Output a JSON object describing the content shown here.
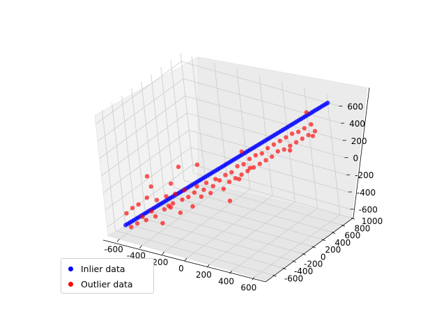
{
  "chart_data": {
    "type": "scatter",
    "projection": "3d",
    "title": "",
    "xlabel": "",
    "ylabel": "",
    "zlabel": "",
    "xlim": [
      -700,
      700
    ],
    "ylim": [
      -750,
      1000
    ],
    "zlim": [
      -700,
      700
    ],
    "x_ticks": [
      "-600",
      "-400",
      "-200",
      "0",
      "200",
      "400",
      "600"
    ],
    "y_ticks": [
      "-600",
      "-400",
      "-200",
      "0",
      "200",
      "400",
      "600",
      "800",
      "1000"
    ],
    "z_ticks": [
      "-600",
      "-400",
      "-200",
      "0",
      "200",
      "400",
      "600"
    ],
    "grid": true,
    "legend_position": "lower-left",
    "series": [
      {
        "name": "Inlier data",
        "color": "#0000ff",
        "line": {
          "x0": -600,
          "y0": -600,
          "z0": -600,
          "x1": 600,
          "y1": 1000,
          "z1": 600
        },
        "count": 100
      },
      {
        "name": "Outlier data",
        "color": "#ff0000",
        "points": [
          [
            -600,
            -560,
            -480
          ],
          [
            -580,
            -540,
            -640
          ],
          [
            -560,
            -520,
            -420
          ],
          [
            -540,
            -500,
            -600
          ],
          [
            -520,
            -480,
            -380
          ],
          [
            -500,
            -470,
            -520
          ],
          [
            -480,
            -450,
            -560
          ],
          [
            -460,
            -430,
            -300
          ],
          [
            -440,
            -410,
            -460
          ],
          [
            -420,
            -390,
            -520
          ],
          [
            -400,
            -370,
            -330
          ],
          [
            -380,
            -350,
            -600
          ],
          [
            -360,
            -330,
            -440
          ],
          [
            -340,
            -310,
            -290
          ],
          [
            -320,
            -290,
            -420
          ],
          [
            -300,
            -280,
            -370
          ],
          [
            -280,
            -260,
            -260
          ],
          [
            -260,
            -240,
            -480
          ],
          [
            -240,
            -220,
            -330
          ],
          [
            -220,
            -200,
            -220
          ],
          [
            -200,
            -180,
            -300
          ],
          [
            -180,
            -160,
            -410
          ],
          [
            -160,
            -140,
            -250
          ],
          [
            -140,
            -120,
            -180
          ],
          [
            -120,
            -100,
            -300
          ],
          [
            -100,
            -80,
            -220
          ],
          [
            -80,
            -60,
            -140
          ],
          [
            -60,
            -40,
            -260
          ],
          [
            -40,
            -20,
            -180
          ],
          [
            -20,
            0,
            -100
          ],
          [
            0,
            30,
            -120
          ],
          [
            20,
            50,
            -220
          ],
          [
            40,
            70,
            -60
          ],
          [
            60,
            90,
            -140
          ],
          [
            80,
            110,
            -30
          ],
          [
            100,
            130,
            -100
          ],
          [
            120,
            150,
            40
          ],
          [
            140,
            170,
            -60
          ],
          [
            160,
            190,
            60
          ],
          [
            180,
            210,
            -20
          ],
          [
            200,
            230,
            120
          ],
          [
            220,
            250,
            20
          ],
          [
            240,
            270,
            160
          ],
          [
            260,
            290,
            60
          ],
          [
            280,
            310,
            180
          ],
          [
            300,
            330,
            100
          ],
          [
            320,
            350,
            240
          ],
          [
            340,
            370,
            140
          ],
          [
            360,
            390,
            280
          ],
          [
            380,
            410,
            200
          ],
          [
            400,
            430,
            320
          ],
          [
            420,
            450,
            220
          ],
          [
            440,
            470,
            360
          ],
          [
            460,
            490,
            260
          ],
          [
            480,
            510,
            400
          ],
          [
            500,
            530,
            300
          ],
          [
            520,
            550,
            420
          ],
          [
            540,
            570,
            340
          ],
          [
            560,
            590,
            460
          ],
          [
            580,
            610,
            380
          ],
          [
            600,
            640,
            500
          ],
          [
            620,
            660,
            420
          ],
          [
            580,
            620,
            640
          ],
          [
            600,
            650,
            360
          ],
          [
            -500,
            -300,
            -120
          ],
          [
            -450,
            -350,
            -200
          ],
          [
            -300,
            -100,
            -20
          ],
          [
            -150,
            -50,
            40
          ],
          [
            100,
            -20,
            -300
          ],
          [
            150,
            200,
            200
          ],
          [
            -250,
            -380,
            -80
          ],
          [
            50,
            300,
            -200
          ],
          [
            -380,
            -200,
            -460
          ],
          [
            250,
            120,
            80
          ],
          [
            400,
            600,
            140
          ]
        ]
      }
    ]
  }
}
